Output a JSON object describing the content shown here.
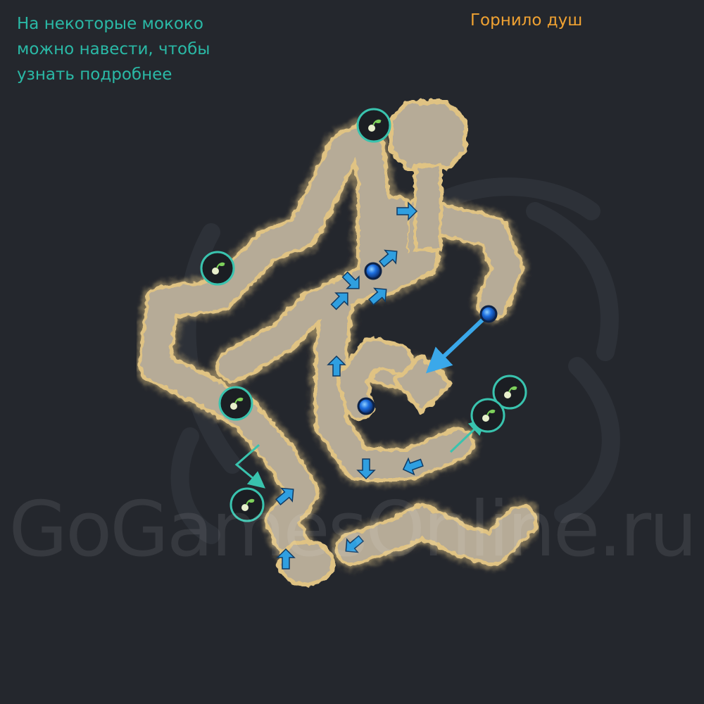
{
  "hint": {
    "lines": [
      "На некоторые мококо",
      "можно навести, чтобы",
      "узнать подробнее"
    ]
  },
  "zone_name": "Горнило душ",
  "watermark": "GoGamesOnline.ru",
  "colors": {
    "background": "#24272d",
    "path_fill": "#b6ab97",
    "path_edge": "#e0c383",
    "hint_text": "#2ab9a6",
    "zone_text": "#f0a232",
    "arrow": "#2f9fe0",
    "portal": "#1d6fe0",
    "mokoko_ring": "#39c3ae",
    "mokoko_seed": "#7ed15c"
  },
  "legend": {
    "marker_icon": "mokoko-seed-icon",
    "arrow_icon": "direction-arrow-icon",
    "portal_icon": "portal-orb-icon"
  }
}
